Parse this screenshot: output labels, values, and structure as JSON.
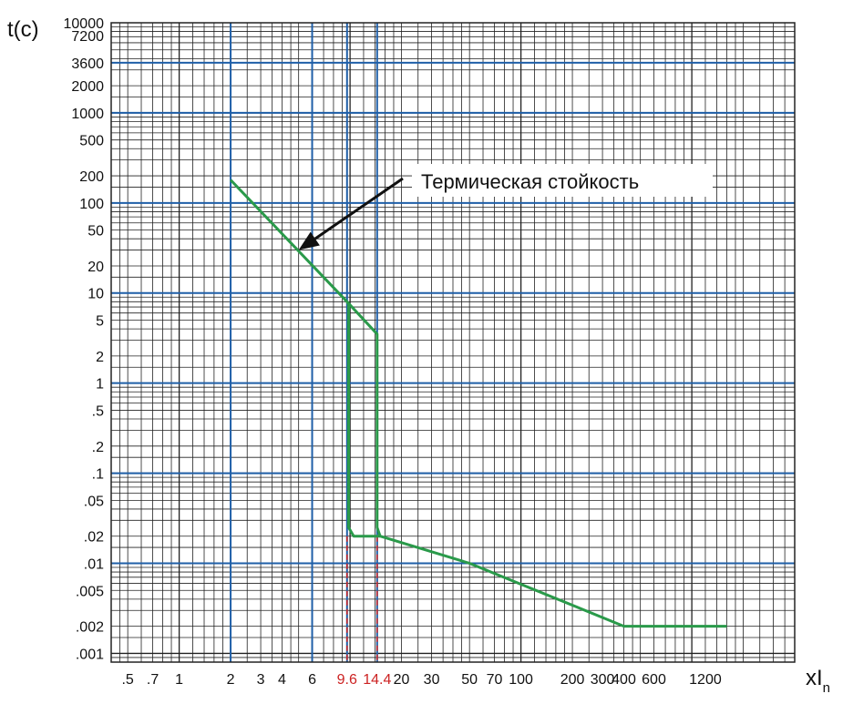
{
  "chart_data": {
    "type": "line",
    "title": "",
    "xscale": "log",
    "yscale": "log",
    "xlim": [
      0.4,
      4000
    ],
    "ylim": [
      0.0008,
      10000
    ],
    "ylabel": "t(c)",
    "xlabel_main": "xI",
    "xlabel_sub": "n",
    "x_tick_labels": [
      {
        "v": 0.5,
        "t": ".5"
      },
      {
        "v": 0.7,
        "t": ".7"
      },
      {
        "v": 1,
        "t": "1"
      },
      {
        "v": 2,
        "t": "2"
      },
      {
        "v": 3,
        "t": "3"
      },
      {
        "v": 4,
        "t": "4"
      },
      {
        "v": 6,
        "t": "6"
      },
      {
        "v": 9.6,
        "t": "9.6",
        "highlight": true
      },
      {
        "v": 14.4,
        "t": "14.4",
        "highlight": true
      },
      {
        "v": 20,
        "t": "20"
      },
      {
        "v": 30,
        "t": "30"
      },
      {
        "v": 50,
        "t": "50"
      },
      {
        "v": 70,
        "t": "70"
      },
      {
        "v": 100,
        "t": "100"
      },
      {
        "v": 200,
        "t": "200"
      },
      {
        "v": 300,
        "t": "300"
      },
      {
        "v": 400,
        "t": "400"
      },
      {
        "v": 600,
        "t": "600"
      },
      {
        "v": 1200,
        "t": "1200"
      }
    ],
    "y_tick_labels": [
      {
        "v": 10000,
        "t": "10000"
      },
      {
        "v": 7200,
        "t": "7200"
      },
      {
        "v": 3600,
        "t": "3600"
      },
      {
        "v": 2000,
        "t": "2000"
      },
      {
        "v": 1000,
        "t": "1000"
      },
      {
        "v": 500,
        "t": "500"
      },
      {
        "v": 200,
        "t": "200"
      },
      {
        "v": 100,
        "t": "100"
      },
      {
        "v": 50,
        "t": "50"
      },
      {
        "v": 20,
        "t": "20"
      },
      {
        "v": 10,
        "t": "10"
      },
      {
        "v": 5,
        "t": "5"
      },
      {
        "v": 2,
        "t": "2"
      },
      {
        "v": 1,
        "t": "1"
      },
      {
        "v": 0.5,
        "t": ".5"
      },
      {
        "v": 0.2,
        "t": ".2"
      },
      {
        "v": 0.1,
        "t": ".1"
      },
      {
        "v": 0.05,
        "t": ".05"
      },
      {
        "v": 0.02,
        "t": ".02"
      },
      {
        "v": 0.01,
        "t": ".01"
      },
      {
        "v": 0.005,
        "t": ".005"
      },
      {
        "v": 0.002,
        "t": ".002"
      },
      {
        "v": 0.001,
        "t": ".001"
      }
    ],
    "blue_vlines": [
      2,
      6,
      9.6,
      14.4
    ],
    "blue_hlines": [
      3600,
      1000,
      100,
      10,
      1,
      0.1,
      0.01
    ],
    "dashed_markers": [
      9.6,
      14.4
    ],
    "series": [
      {
        "color": "#2a9a4a",
        "points": [
          [
            2,
            180
          ],
          [
            9.6,
            8
          ],
          [
            14.4,
            3.5
          ],
          [
            14.4,
            0.025
          ],
          [
            15,
            0.02
          ],
          [
            50,
            0.01
          ],
          [
            400,
            0.002
          ],
          [
            1600,
            0.002
          ]
        ]
      },
      {
        "color": "#2a9a4a",
        "points": [
          [
            9.6,
            8
          ],
          [
            9.8,
            7.5
          ],
          [
            9.8,
            0.025
          ],
          [
            10.5,
            0.02
          ],
          [
            15,
            0.02
          ]
        ]
      }
    ],
    "annotation": {
      "text": "Термическая стойкость",
      "target": [
        5,
        30
      ]
    },
    "colors": {
      "grid_minor": "#222222",
      "grid_major": "#1f5fa8",
      "curve": "#2a9a4a",
      "marker": "#cc2222"
    }
  }
}
